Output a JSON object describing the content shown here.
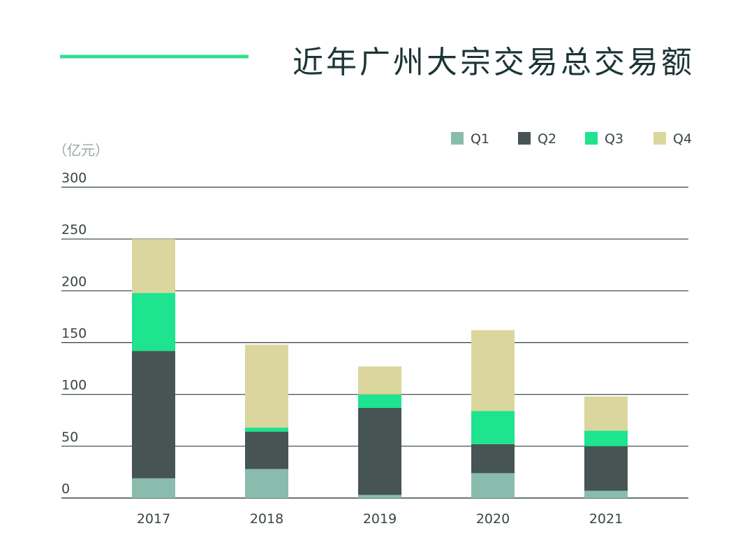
{
  "chart_data": {
    "type": "bar",
    "stacked": true,
    "title": "近年广州大宗交易总交易额",
    "ylabel": "（亿元）",
    "xlabel": "",
    "ylim": [
      0,
      300
    ],
    "yticks": [
      0,
      50,
      100,
      150,
      200,
      250,
      300
    ],
    "grid": true,
    "legend_position": "top-right",
    "categories": [
      "2017",
      "2018",
      "2019",
      "2020",
      "2021"
    ],
    "series": [
      {
        "name": "Q1",
        "color": "#8abcae",
        "values": [
          19,
          28,
          3,
          24,
          7
        ]
      },
      {
        "name": "Q2",
        "color": "#465454",
        "values": [
          123,
          36,
          84,
          28,
          43
        ]
      },
      {
        "name": "Q3",
        "color": "#1ee38f",
        "values": [
          56,
          4,
          13,
          32,
          15
        ]
      },
      {
        "name": "Q4",
        "color": "#dbd69d",
        "values": [
          52,
          80,
          27,
          78,
          33
        ]
      }
    ],
    "accent_color": "#2fe08f",
    "title_color": "#1c3434"
  }
}
